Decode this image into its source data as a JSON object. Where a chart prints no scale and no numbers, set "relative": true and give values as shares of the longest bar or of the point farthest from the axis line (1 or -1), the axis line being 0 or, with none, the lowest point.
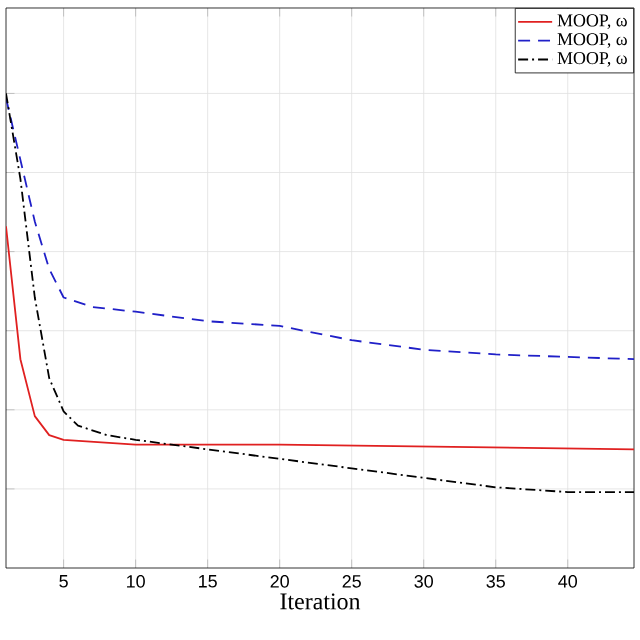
{
  "chart_data": {
    "type": "line",
    "xlabel": "Iteration",
    "relative": true,
    "xlim": [
      1,
      44.6
    ],
    "xticks": [
      5,
      10,
      15,
      20,
      25,
      30,
      35,
      40
    ],
    "grid": true,
    "legend": "top right",
    "series": [
      {
        "name": "MOOP, ω",
        "color": "#e02020",
        "line_style": "solid",
        "x": [
          1,
          2,
          3,
          4,
          5,
          10,
          20,
          44.6
        ],
        "values": [
          0.72,
          0.44,
          0.32,
          0.28,
          0.27,
          0.26,
          0.26,
          0.25
        ]
      },
      {
        "name": "MOOP, ω",
        "color": "#2020c8",
        "line_style": "dashed",
        "x": [
          1,
          2,
          3,
          4,
          5,
          7,
          10,
          15,
          20,
          25,
          30,
          35,
          44.6
        ],
        "values": [
          0.99,
          0.86,
          0.73,
          0.63,
          0.57,
          0.55,
          0.54,
          0.52,
          0.51,
          0.48,
          0.46,
          0.45,
          0.44
        ]
      },
      {
        "name": "MOOP, ω",
        "color": "#000000",
        "line_style": "dashdot",
        "x": [
          1,
          2,
          3,
          4,
          5,
          6,
          8,
          10,
          15,
          20,
          25,
          30,
          35,
          40,
          44.6
        ],
        "values": [
          1.0,
          0.82,
          0.57,
          0.4,
          0.33,
          0.3,
          0.28,
          0.27,
          0.25,
          0.23,
          0.21,
          0.19,
          0.17,
          0.16,
          0.16
        ]
      }
    ]
  }
}
